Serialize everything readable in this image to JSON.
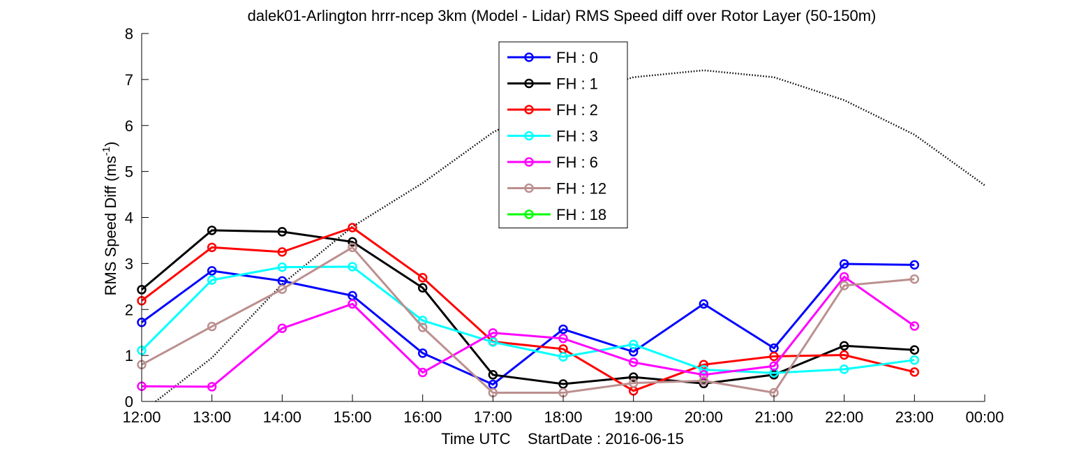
{
  "chart_data": {
    "type": "line",
    "title": "dalek01-Arlington hrrr-ncep 3km (Model - Lidar) RMS Speed diff over Rotor Layer (50-150m)",
    "xlabel": "Time UTC    StartDate : 2016-06-15",
    "ylabel_main": "RMS Speed Diff (ms",
    "ylabel_sup": "-1",
    "ylabel_close": ")",
    "x_tick_labels": [
      "12:00",
      "13:00",
      "14:00",
      "15:00",
      "16:00",
      "17:00",
      "18:00",
      "19:00",
      "20:00",
      "21:00",
      "22:00",
      "23:00",
      "00:00"
    ],
    "y_ticks": [
      0,
      1,
      2,
      3,
      4,
      5,
      6,
      7,
      8
    ],
    "xlim": [
      12,
      24
    ],
    "ylim": [
      0,
      8
    ],
    "grid": false,
    "legend_position": "top-center",
    "series": [
      {
        "name": "FH : 0",
        "color": "#0000ff",
        "values": [
          1.72,
          2.84,
          2.62,
          2.3,
          1.05,
          0.37,
          1.57,
          1.08,
          2.12,
          1.16,
          2.99,
          2.97
        ]
      },
      {
        "name": "FH : 1",
        "color": "#000000",
        "values": [
          2.43,
          3.72,
          3.69,
          3.47,
          2.47,
          0.58,
          0.38,
          0.53,
          0.39,
          0.58,
          1.21,
          1.12
        ]
      },
      {
        "name": "FH : 2",
        "color": "#ff0000",
        "values": [
          2.19,
          3.35,
          3.25,
          3.78,
          2.69,
          1.3,
          1.14,
          0.23,
          0.8,
          0.98,
          1.01,
          0.64
        ]
      },
      {
        "name": "FH : 3",
        "color": "#00ffff",
        "values": [
          1.11,
          2.64,
          2.92,
          2.93,
          1.76,
          1.29,
          0.97,
          1.24,
          0.69,
          0.62,
          0.7,
          0.9
        ]
      },
      {
        "name": "FH : 6",
        "color": "#ff00ff",
        "values": [
          0.33,
          0.32,
          1.59,
          2.12,
          0.63,
          1.49,
          1.37,
          0.85,
          0.58,
          0.77,
          2.71,
          1.64
        ]
      },
      {
        "name": "FH : 12",
        "color": "#bc8f8f",
        "values": [
          0.8,
          1.63,
          2.44,
          3.35,
          1.61,
          0.19,
          0.19,
          0.4,
          0.45,
          0.19,
          2.52,
          2.66
        ]
      },
      {
        "name": "FH : 18",
        "color": "#00ff00",
        "values": []
      }
    ],
    "reference_curve": {
      "style": "dotted",
      "color": "#000000",
      "x": [
        12.2,
        13,
        14,
        15,
        16,
        17,
        18,
        19,
        20,
        21,
        22,
        23,
        24
      ],
      "y": [
        0.0,
        0.95,
        2.55,
        3.8,
        4.75,
        5.85,
        6.6,
        7.05,
        7.2,
        7.05,
        6.55,
        5.8,
        4.7
      ]
    }
  }
}
